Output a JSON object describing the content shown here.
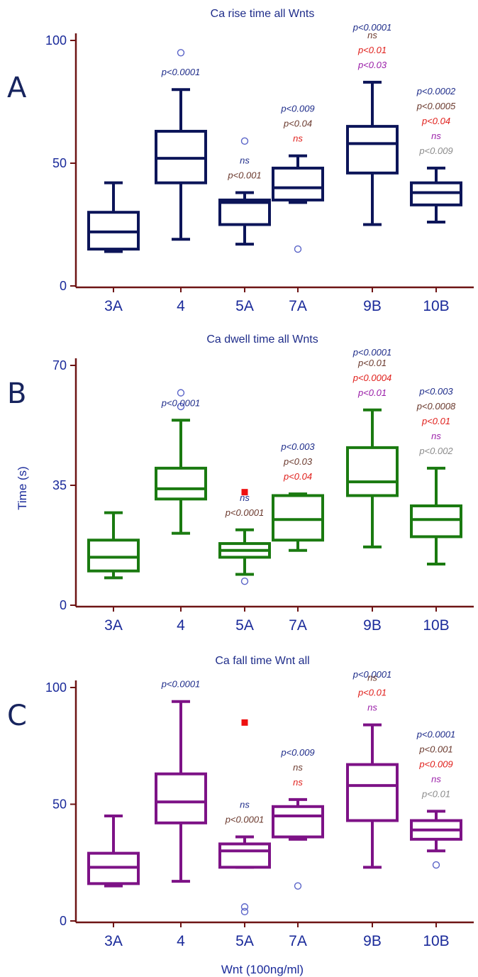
{
  "figure": {
    "ylabel": "Time (s)",
    "xlabel": "Wnt (100ng/ml)"
  },
  "chart_data": [
    {
      "panel": "A",
      "type": "box",
      "title": "Ca rise time all Wnts",
      "categories": [
        "3A",
        "4",
        "5A",
        "7A",
        "9B",
        "10B"
      ],
      "yticks": [
        0,
        50,
        100
      ],
      "ylim": [
        0,
        100
      ],
      "color": "#0c1559",
      "boxes": [
        {
          "min": 14,
          "q1": 15,
          "median": 22,
          "q3": 30,
          "max": 42,
          "outliers": [],
          "extremes": []
        },
        {
          "min": 19,
          "q1": 42,
          "median": 52,
          "q3": 63,
          "max": 80,
          "outliers": [
            95
          ],
          "extremes": []
        },
        {
          "min": 17,
          "q1": 25,
          "median": 34,
          "q3": 35,
          "max": 38,
          "outliers": [
            59
          ],
          "extremes": []
        },
        {
          "min": 34,
          "q1": 35,
          "median": 40,
          "q3": 48,
          "max": 53,
          "outliers": [
            15
          ],
          "extremes": []
        },
        {
          "min": 25,
          "q1": 46,
          "median": 58,
          "q3": 65,
          "max": 83,
          "outliers": [],
          "extremes": []
        },
        {
          "min": 26,
          "q1": 33,
          "median": 38,
          "q3": 42,
          "max": 48,
          "outliers": [],
          "extremes": []
        }
      ],
      "annotations": [
        [],
        [
          {
            "text": "p<0.0001",
            "color": "#1f2d8a"
          }
        ],
        [
          {
            "text": "ns",
            "color": "#1f2d8a"
          },
          {
            "text": "p<0.001",
            "color": "#6b3a2e"
          }
        ],
        [
          {
            "text": "p<0.009",
            "color": "#1f2d8a"
          },
          {
            "text": "p<0.04",
            "color": "#6b3a2e"
          },
          {
            "text": "ns",
            "color": "#e0201c"
          }
        ],
        [
          {
            "text": "p<0.0001",
            "color": "#1f2d8a"
          },
          {
            "text": "ns",
            "color": "#6b3a2e"
          },
          {
            "text": "p<0.01",
            "color": "#e0201c"
          },
          {
            "text": "p<0.03",
            "color": "#9a1ea8"
          }
        ],
        [
          {
            "text": "p<0.0002",
            "color": "#1f2d8a"
          },
          {
            "text": "p<0.0005",
            "color": "#6b3a2e"
          },
          {
            "text": "p<0.04",
            "color": "#e0201c"
          },
          {
            "text": "ns",
            "color": "#9a1ea8"
          },
          {
            "text": "p<0.009",
            "color": "#8c8c8c"
          }
        ]
      ]
    },
    {
      "panel": "B",
      "type": "box",
      "title": "Ca dwell time all Wnts",
      "categories": [
        "3A",
        "4",
        "5A",
        "7A",
        "9B",
        "10B"
      ],
      "yticks": [
        0,
        35,
        70
      ],
      "ylim": [
        0,
        70
      ],
      "color": "#1a7a10",
      "boxes": [
        {
          "min": 8,
          "q1": 10,
          "median": 14,
          "q3": 19,
          "max": 27,
          "outliers": [],
          "extremes": []
        },
        {
          "min": 21,
          "q1": 31,
          "median": 34,
          "q3": 40,
          "max": 54,
          "outliers": [
            58,
            62
          ],
          "extremes": []
        },
        {
          "min": 9,
          "q1": 14,
          "median": 16,
          "q3": 18,
          "max": 22,
          "outliers": [
            7
          ],
          "extremes": [
            33
          ]
        },
        {
          "min": 16,
          "q1": 19,
          "median": 25,
          "q3": 32,
          "max": 32.5,
          "outliers": [],
          "extremes": []
        },
        {
          "min": 17,
          "q1": 32,
          "median": 36,
          "q3": 46,
          "max": 57,
          "outliers": [],
          "extremes": []
        },
        {
          "min": 12,
          "q1": 20,
          "median": 25,
          "q3": 29,
          "max": 40,
          "outliers": [],
          "extremes": []
        }
      ],
      "annotations": [
        [],
        [
          {
            "text": "p<0.0001",
            "color": "#1f2d8a"
          }
        ],
        [
          {
            "text": "ns",
            "color": "#1f2d8a"
          },
          {
            "text": "p<0.0001",
            "color": "#6b3a2e"
          }
        ],
        [
          {
            "text": "p<0.003",
            "color": "#1f2d8a"
          },
          {
            "text": "p<0.03",
            "color": "#6b3a2e"
          },
          {
            "text": "p<0.04",
            "color": "#e0201c"
          }
        ],
        [
          {
            "text": "p<0.0001",
            "color": "#1f2d8a"
          },
          {
            "text": "p<0.01",
            "color": "#6b3a2e"
          },
          {
            "text": "p<0.0004",
            "color": "#e0201c"
          },
          {
            "text": "p<0.01",
            "color": "#9a1ea8"
          }
        ],
        [
          {
            "text": "p<0.003",
            "color": "#1f2d8a"
          },
          {
            "text": "p<0.0008",
            "color": "#6b3a2e"
          },
          {
            "text": "p<0.01",
            "color": "#e0201c"
          },
          {
            "text": "ns",
            "color": "#9a1ea8"
          },
          {
            "text": "p<0.002",
            "color": "#8c8c8c"
          }
        ]
      ]
    },
    {
      "panel": "C",
      "type": "box",
      "title": "Ca fall time Wnt all",
      "categories": [
        "3A",
        "4",
        "5A",
        "7A",
        "9B",
        "10B"
      ],
      "yticks": [
        0,
        50,
        100
      ],
      "ylim": [
        0,
        100
      ],
      "color": "#7d1286",
      "boxes": [
        {
          "min": 15,
          "q1": 16,
          "median": 23,
          "q3": 29,
          "max": 45,
          "outliers": [],
          "extremes": []
        },
        {
          "min": 17,
          "q1": 42,
          "median": 51,
          "q3": 63,
          "max": 94,
          "outliers": [],
          "extremes": []
        },
        {
          "min": 23,
          "q1": 23,
          "median": 30,
          "q3": 33,
          "max": 36,
          "outliers": [
            4,
            6
          ],
          "extremes": [
            85
          ]
        },
        {
          "min": 35,
          "q1": 36,
          "median": 45,
          "q3": 49,
          "max": 52,
          "outliers": [
            15
          ],
          "extremes": []
        },
        {
          "min": 23,
          "q1": 43,
          "median": 58,
          "q3": 67,
          "max": 84,
          "outliers": [],
          "extremes": []
        },
        {
          "min": 30,
          "q1": 35,
          "median": 39,
          "q3": 43,
          "max": 47,
          "outliers": [
            24
          ],
          "extremes": []
        }
      ],
      "annotations": [
        [],
        [
          {
            "text": "p<0.0001",
            "color": "#1f2d8a"
          }
        ],
        [
          {
            "text": "ns",
            "color": "#1f2d8a"
          },
          {
            "text": "p<0.0001",
            "color": "#6b3a2e"
          }
        ],
        [
          {
            "text": "p<0.009",
            "color": "#1f2d8a"
          },
          {
            "text": "ns",
            "color": "#6b3a2e"
          },
          {
            "text": "ns",
            "color": "#e0201c"
          }
        ],
        [
          {
            "text": "p<0.0001",
            "color": "#1f2d8a"
          },
          {
            "text": "ns",
            "color": "#6b3a2e"
          },
          {
            "text": "p<0.01",
            "color": "#e0201c"
          },
          {
            "text": "ns",
            "color": "#9a1ea8"
          }
        ],
        [
          {
            "text": "p<0.0001",
            "color": "#1f2d8a"
          },
          {
            "text": "p<0.001",
            "color": "#6b3a2e"
          },
          {
            "text": "p<0.009",
            "color": "#e0201c"
          },
          {
            "text": "ns",
            "color": "#9a1ea8"
          },
          {
            "text": "p<0.01",
            "color": "#8c8c8c"
          }
        ]
      ]
    }
  ]
}
